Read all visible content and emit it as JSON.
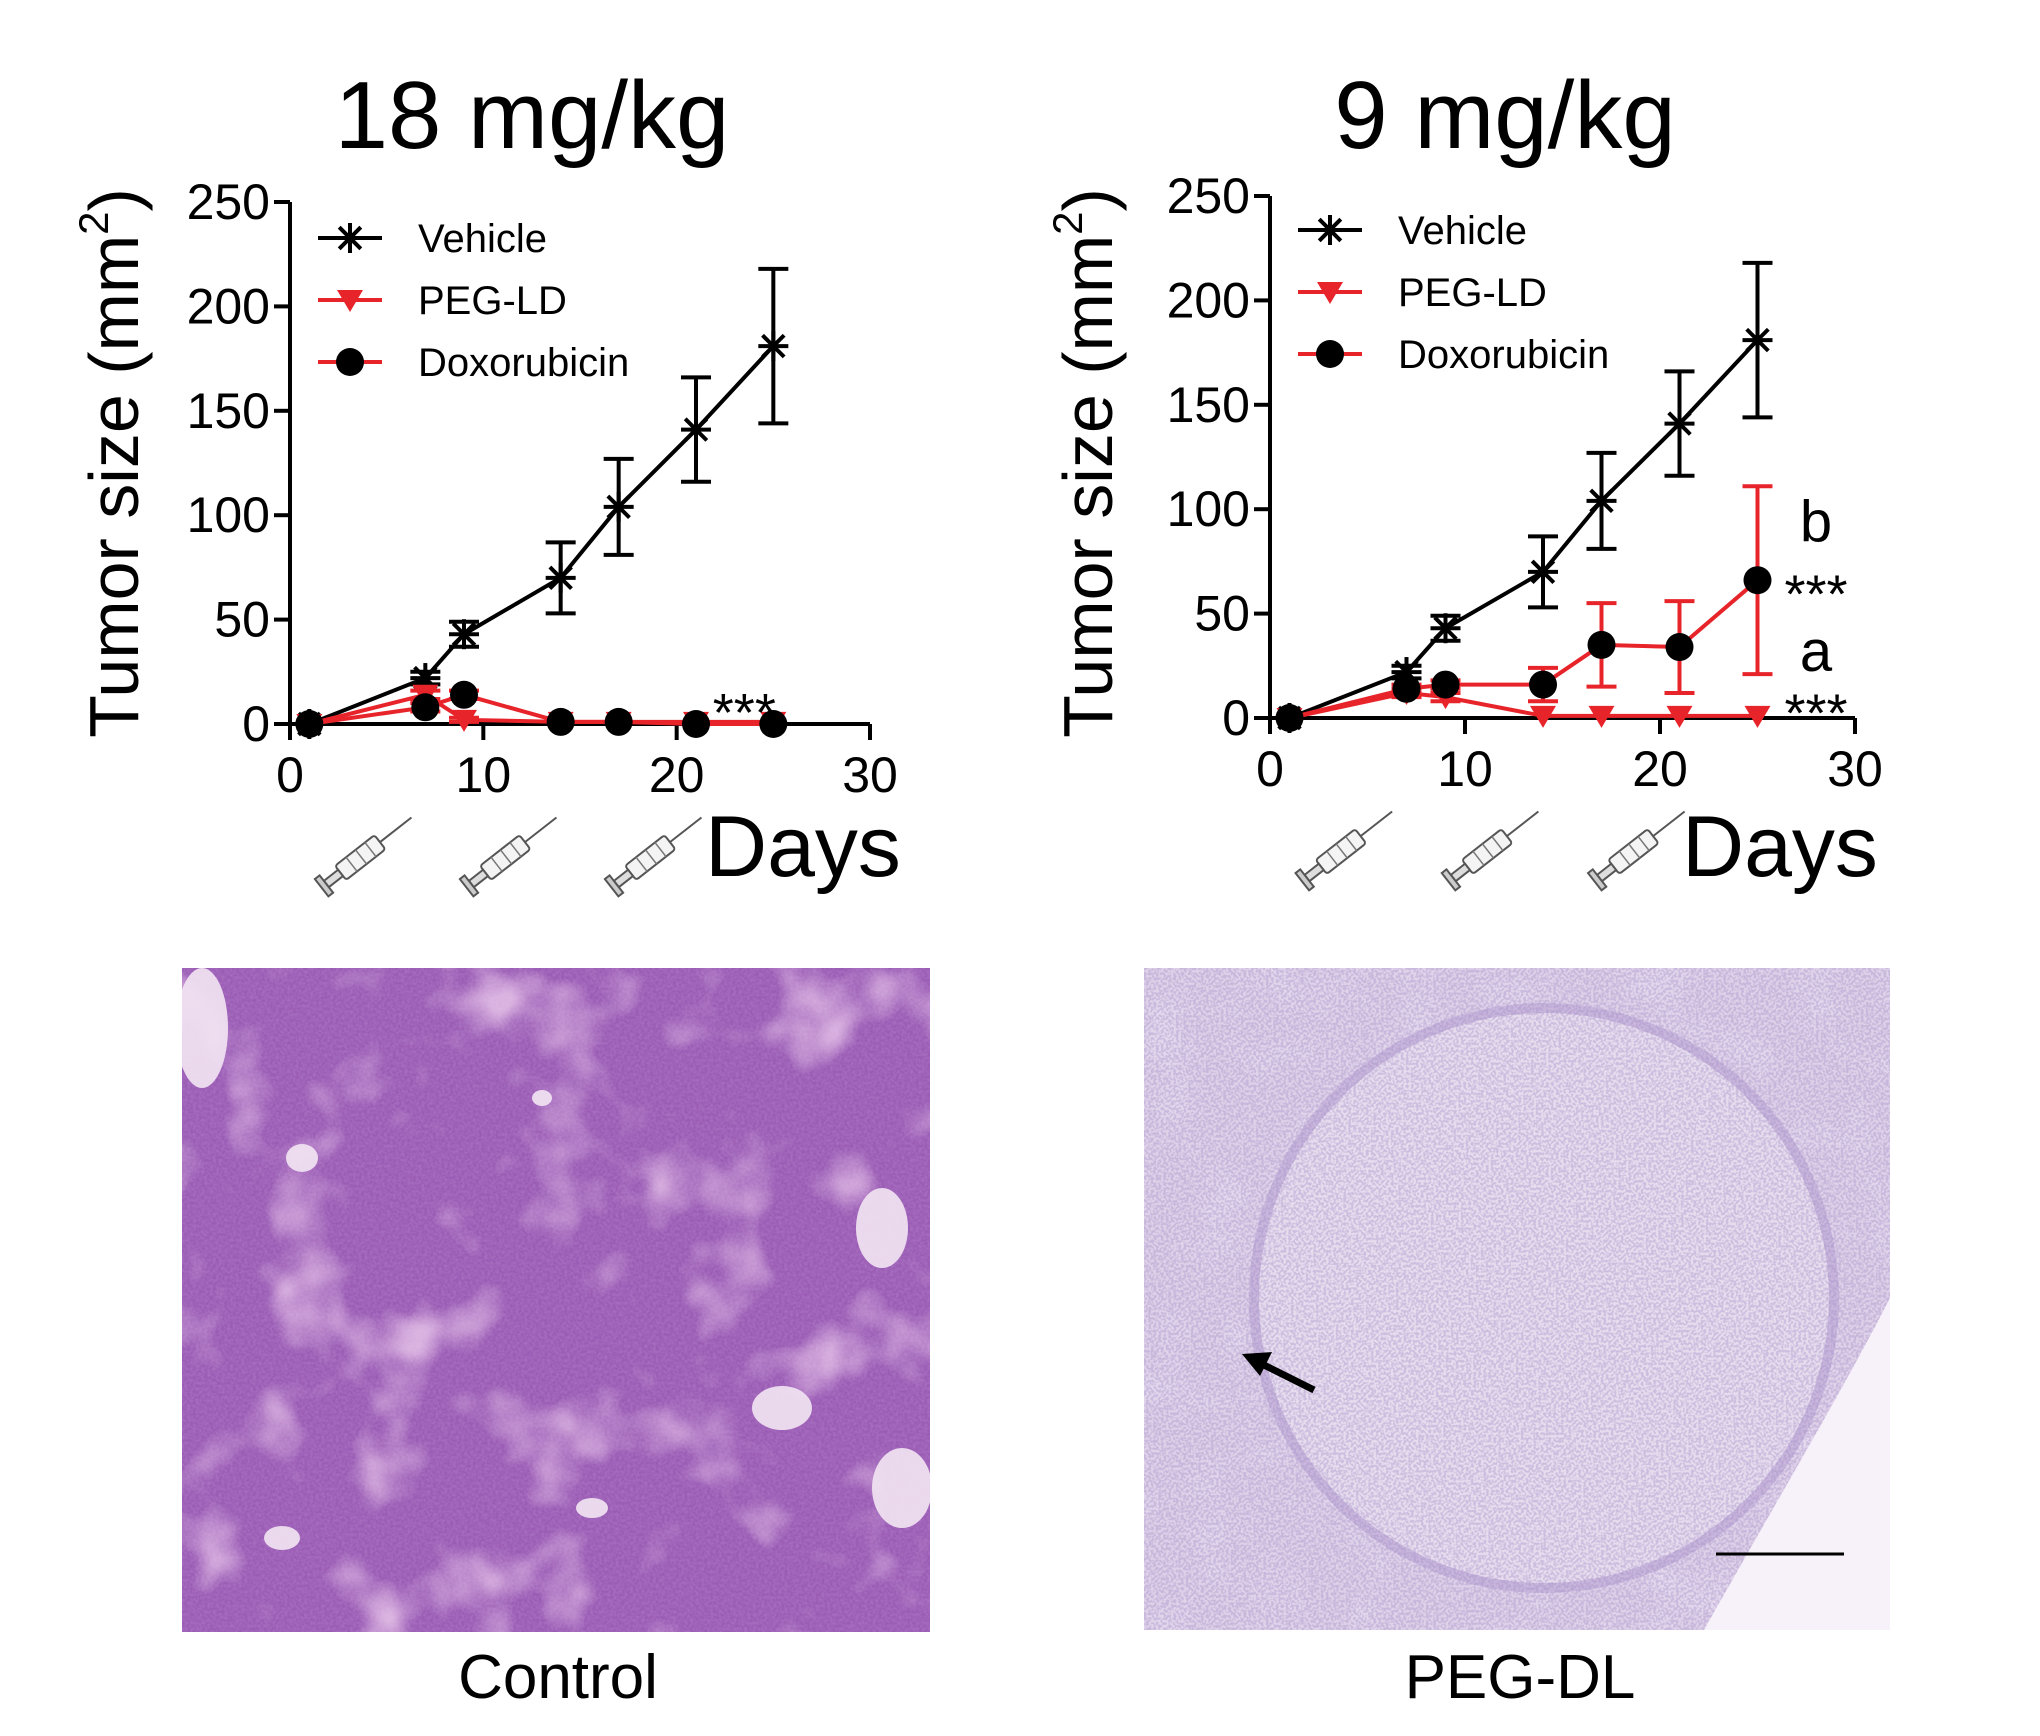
{
  "colors": {
    "vehicle": "#000000",
    "treated": "#e8242b",
    "he_dense": "#8a4aa6",
    "he_light": "#d6c6e4"
  },
  "chart_data": [
    {
      "type": "line",
      "title": "18 mg/kg",
      "xlabel": "Days",
      "ylabel": "Tumor size (mm2)",
      "xlim": [
        0,
        30
      ],
      "ylim": [
        0,
        250
      ],
      "xticks": [
        0,
        10,
        20,
        30
      ],
      "yticks": [
        0,
        50,
        100,
        150,
        200,
        250
      ],
      "grid": false,
      "legend_position": "top-left",
      "injection_days": [
        4,
        11.5,
        19
      ],
      "injection_icon": "syringe-icon",
      "series": [
        {
          "name": "Vehicle",
          "marker": "asterisk",
          "color": "#000000",
          "x": [
            1,
            7,
            9,
            14,
            17,
            21,
            25
          ],
          "y": [
            0,
            22,
            43,
            70,
            104,
            141,
            181
          ],
          "err": [
            0,
            3,
            6,
            17,
            23,
            25,
            37
          ]
        },
        {
          "name": "PEG-LD",
          "marker": "triangle-down",
          "color": "#e8242b",
          "x": [
            1,
            7,
            9,
            14,
            17,
            21,
            25
          ],
          "y": [
            0,
            14,
            2,
            1,
            1,
            1,
            1
          ],
          "err": [
            0,
            2,
            1,
            0,
            0,
            0,
            0
          ]
        },
        {
          "name": "Doxorubicin",
          "marker": "circle",
          "color": "#e8242b",
          "x": [
            1,
            7,
            9,
            14,
            17,
            21,
            25
          ],
          "y": [
            0,
            8,
            14,
            1,
            1,
            0,
            0
          ],
          "err": [
            0,
            2,
            2,
            0,
            0,
            0,
            0
          ]
        }
      ],
      "annotations": [
        {
          "text": "***",
          "x": 23.5,
          "y": 10
        }
      ]
    },
    {
      "type": "line",
      "title": "9 mg/kg",
      "xlabel": "Days",
      "ylabel": "Tumor size (mm2)",
      "xlim": [
        0,
        30
      ],
      "ylim": [
        0,
        250
      ],
      "xticks": [
        0,
        10,
        20,
        30
      ],
      "yticks": [
        0,
        50,
        100,
        150,
        200,
        250
      ],
      "grid": false,
      "legend_position": "top-left",
      "injection_days": [
        4,
        11.5,
        19
      ],
      "injection_icon": "syringe-icon",
      "series": [
        {
          "name": "Vehicle",
          "marker": "asterisk",
          "color": "#000000",
          "x": [
            1,
            7,
            9,
            14,
            17,
            21,
            25
          ],
          "y": [
            0,
            22,
            43,
            70,
            104,
            141,
            181
          ],
          "err": [
            0,
            3,
            6,
            17,
            23,
            25,
            37
          ]
        },
        {
          "name": "PEG-LD",
          "marker": "triangle-down",
          "color": "#e8242b",
          "x": [
            1,
            7,
            9,
            14,
            17,
            21,
            25
          ],
          "y": [
            0,
            12,
            10,
            1,
            1,
            1,
            1
          ],
          "err": [
            0,
            2,
            2,
            0,
            0,
            0,
            0
          ]
        },
        {
          "name": "Doxorubicin",
          "marker": "circle",
          "color": "#e8242b",
          "x": [
            1,
            7,
            9,
            14,
            17,
            21,
            25
          ],
          "y": [
            0,
            14,
            16,
            16,
            35,
            34,
            66
          ],
          "err": [
            0,
            2,
            2,
            8,
            20,
            22,
            45
          ]
        }
      ],
      "annotations": [
        {
          "text": "b",
          "x": 28,
          "y": 95
        },
        {
          "text": "***",
          "x": 28,
          "y": 64
        },
        {
          "text": "a",
          "x": 28,
          "y": 33
        },
        {
          "text": "***",
          "x": 28,
          "y": 7
        }
      ]
    }
  ],
  "histology": [
    {
      "caption": "Control",
      "stain": "H&E"
    },
    {
      "caption": "PEG-DL",
      "stain": "H&E",
      "arrow_icon": "arrow-icon",
      "scale_bar": true
    }
  ]
}
